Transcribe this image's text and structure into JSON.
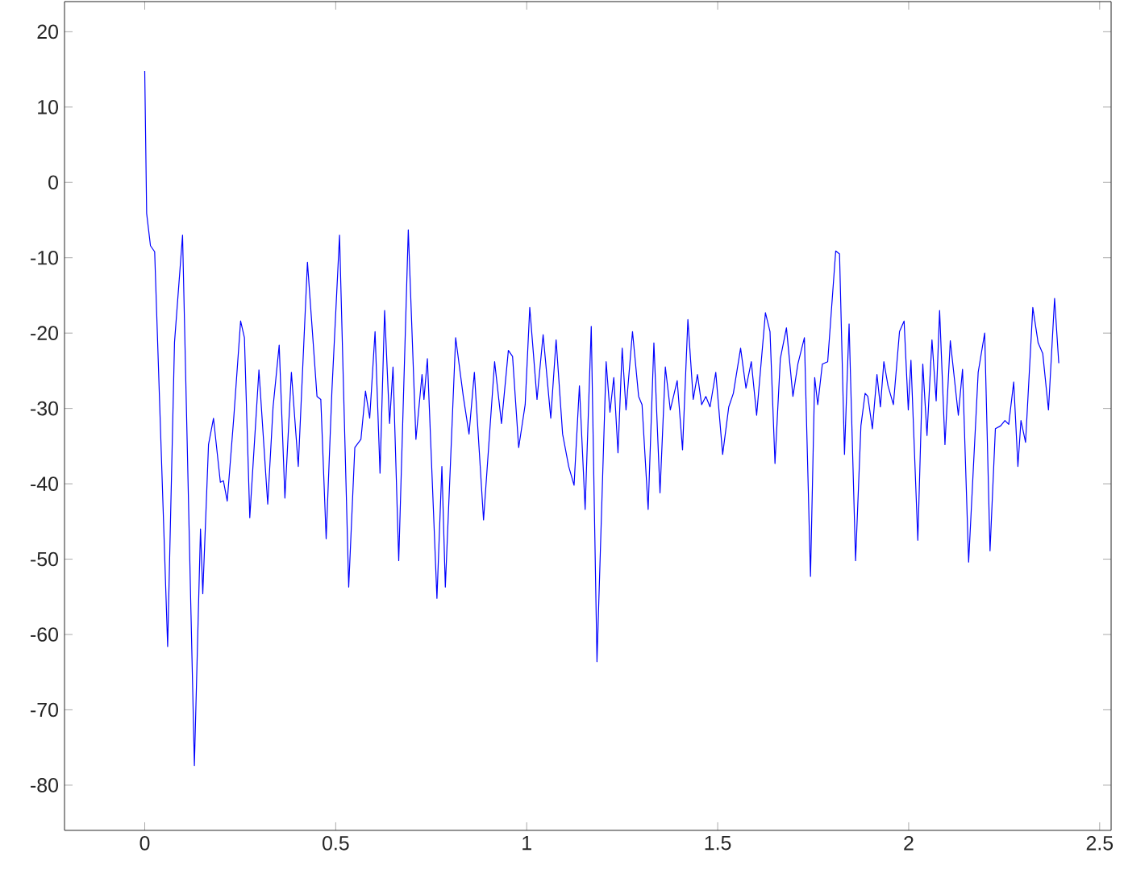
{
  "chart_data": {
    "type": "line",
    "xlim": [
      -0.21,
      2.53
    ],
    "ylim": [
      -86,
      24
    ],
    "xticks": [
      0,
      0.5,
      1,
      1.5,
      2,
      2.5
    ],
    "yticks": [
      -80,
      -70,
      -60,
      -50,
      -40,
      -30,
      -20,
      -10,
      0,
      10,
      20
    ],
    "marker": "none",
    "line_style": "solid",
    "series": [
      {
        "color": "#0000ff",
        "x": [
          0,
          0.005,
          0.015,
          0.026,
          0.06,
          0.078,
          0.099,
          0.13,
          0.146,
          0.152,
          0.167,
          0.18,
          0.198,
          0.206,
          0.216,
          0.233,
          0.251,
          0.261,
          0.275,
          0.299,
          0.322,
          0.336,
          0.352,
          0.367,
          0.384,
          0.402,
          0.426,
          0.451,
          0.461,
          0.475,
          0.49,
          0.51,
          0.534,
          0.55,
          0.566,
          0.578,
          0.589,
          0.603,
          0.616,
          0.628,
          0.641,
          0.65,
          0.665,
          0.69,
          0.71,
          0.726,
          0.731,
          0.74,
          0.765,
          0.778,
          0.787,
          0.814,
          0.834,
          0.849,
          0.863,
          0.887,
          0.916,
          0.934,
          0.952,
          0.963,
          0.979,
          0.996,
          1.008,
          1.027,
          1.043,
          1.063,
          1.077,
          1.094,
          1.11,
          1.124,
          1.138,
          1.153,
          1.169,
          1.184,
          1.208,
          1.218,
          1.228,
          1.239,
          1.25,
          1.26,
          1.277,
          1.293,
          1.302,
          1.318,
          1.333,
          1.349,
          1.363,
          1.376,
          1.394,
          1.408,
          1.422,
          1.436,
          1.447,
          1.458,
          1.469,
          1.48,
          1.495,
          1.513,
          1.529,
          1.541,
          1.56,
          1.574,
          1.588,
          1.602,
          1.625,
          1.637,
          1.65,
          1.664,
          1.68,
          1.697,
          1.71,
          1.727,
          1.743,
          1.754,
          1.762,
          1.774,
          1.788,
          1.809,
          1.819,
          1.832,
          1.844,
          1.861,
          1.875,
          1.886,
          1.893,
          1.905,
          1.917,
          1.926,
          1.935,
          1.946,
          1.96,
          1.976,
          1.988,
          1.999,
          2.006,
          2.024,
          2.037,
          2.048,
          2.061,
          2.072,
          2.081,
          2.095,
          2.109,
          2.13,
          2.141,
          2.157,
          2.182,
          2.199,
          2.213,
          2.227,
          2.241,
          2.252,
          2.262,
          2.275,
          2.286,
          2.294,
          2.306,
          2.325,
          2.339,
          2.351,
          2.366,
          2.382,
          2.393
        ],
        "values": [
          14.8,
          -4.1,
          -8.4,
          -9.2,
          -61.6,
          -21.2,
          -7.0,
          -77.4,
          -46.0,
          -54.6,
          -34.8,
          -31.3,
          -39.8,
          -39.6,
          -42.3,
          -31.3,
          -18.4,
          -20.6,
          -44.5,
          -24.9,
          -42.7,
          -29.8,
          -21.6,
          -41.9,
          -25.2,
          -37.7,
          -10.6,
          -28.4,
          -28.8,
          -47.3,
          -27.7,
          -7.0,
          -53.7,
          -35.2,
          -34.1,
          -27.7,
          -31.3,
          -19.8,
          -38.6,
          -17.0,
          -32.0,
          -24.5,
          -50.2,
          -6.3,
          -34.1,
          -25.5,
          -28.8,
          -23.4,
          -55.2,
          -37.7,
          -53.7,
          -20.6,
          -28.4,
          -33.4,
          -25.2,
          -44.8,
          -23.8,
          -32.0,
          -22.3,
          -23.1,
          -35.2,
          -29.5,
          -16.6,
          -28.8,
          -20.2,
          -31.3,
          -20.9,
          -33.4,
          -37.7,
          -40.2,
          -27.0,
          -43.4,
          -19.1,
          -63.6,
          -23.8,
          -30.5,
          -25.9,
          -35.9,
          -22.0,
          -30.2,
          -19.8,
          -28.4,
          -29.5,
          -43.4,
          -21.3,
          -41.2,
          -24.5,
          -30.2,
          -26.3,
          -35.5,
          -18.2,
          -28.8,
          -25.5,
          -29.5,
          -28.4,
          -29.8,
          -25.2,
          -36.1,
          -29.8,
          -28.0,
          -22.0,
          -27.3,
          -23.8,
          -30.9,
          -17.3,
          -19.8,
          -37.3,
          -23.4,
          -19.3,
          -28.4,
          -24.1,
          -20.6,
          -52.3,
          -25.9,
          -29.5,
          -24.1,
          -23.8,
          -9.1,
          -9.5,
          -36.1,
          -18.8,
          -50.2,
          -32.3,
          -28.0,
          -28.4,
          -32.7,
          -25.5,
          -29.8,
          -23.8,
          -27.0,
          -29.5,
          -19.8,
          -18.4,
          -30.2,
          -23.6,
          -47.5,
          -24.1,
          -33.6,
          -20.9,
          -29.0,
          -17.0,
          -34.8,
          -21.0,
          -30.9,
          -24.8,
          -50.4,
          -25.2,
          -20.0,
          -48.9,
          -32.7,
          -32.3,
          -31.6,
          -32.1,
          -26.5,
          -37.7,
          -31.6,
          -34.5,
          -16.6,
          -21.3,
          -22.7,
          -30.2,
          -15.4,
          -24.0
        ]
      }
    ]
  }
}
